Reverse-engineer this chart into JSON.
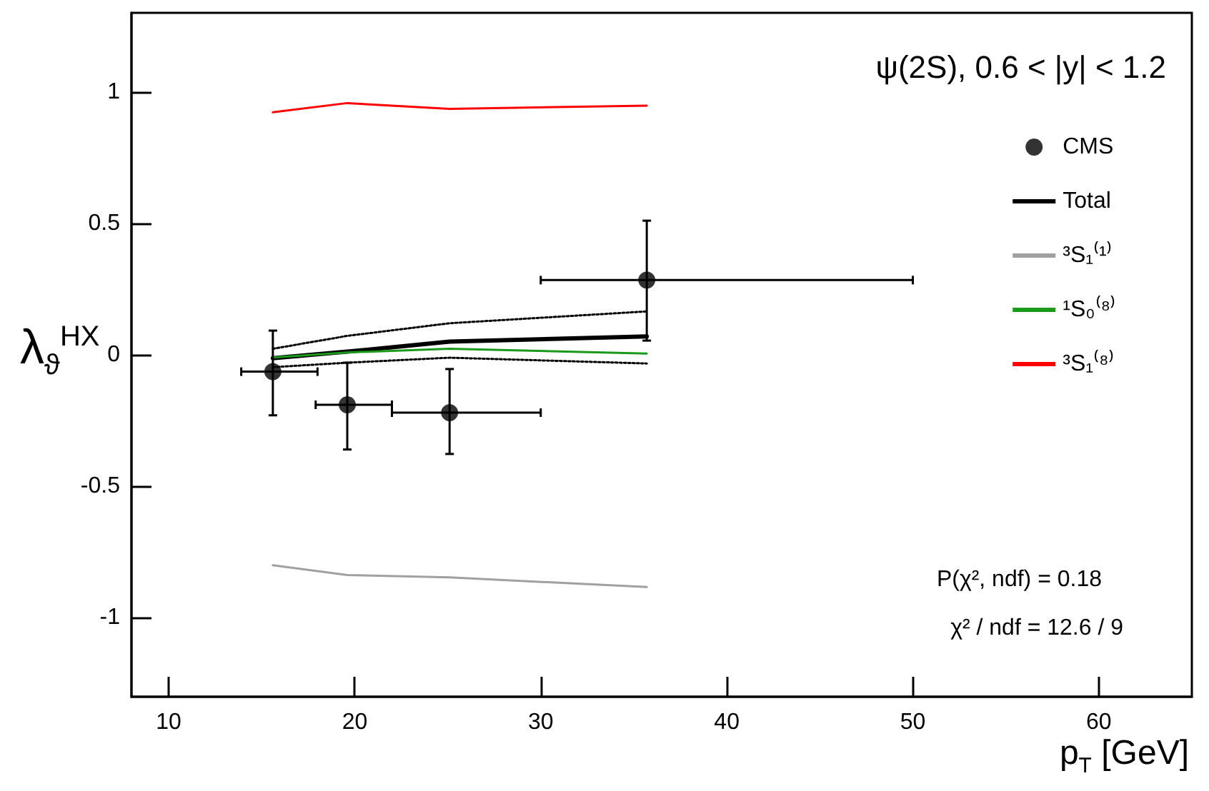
{
  "chart_data": {
    "type": "line",
    "xlabel": "p$_{T}$ [GeV]",
    "ylabel": "λ$_{ϑ}$$^{HX}$",
    "xlim": [
      8,
      65
    ],
    "xticks": [
      10,
      20,
      30,
      40,
      50,
      60
    ],
    "ylim": [
      -1.3,
      1.3
    ],
    "yticks": [
      -1,
      -0.5,
      0,
      0.5,
      1
    ],
    "grid": false,
    "legend": "top right",
    "line_style": "solid",
    "annotations": [
      "ψ(2S), 0.6 < |y| < 1.2",
      "P(χ², ndf) = 0.18",
      "χ² / ndf = 12.6 / 9"
    ],
    "series": [
      {
        "name": "CMS",
        "type": "scatter",
        "color": "#000000",
        "marker": "circle",
        "x": [
          15.6,
          19.6,
          25.1,
          35.7
        ],
        "values": [
          -0.064,
          -0.19,
          -0.22,
          0.284
        ],
        "errors": [
          [
            -0.23,
            0.092
          ],
          [
            -0.36,
            -0.03
          ],
          [
            -0.377,
            -0.054
          ],
          [
            0.054,
            0.51
          ]
        ],
        "xerrors": [
          [
            13.9,
            18.0
          ],
          [
            17.9,
            22.0
          ],
          [
            22.0,
            30.0
          ],
          [
            30.0,
            50.0
          ]
        ]
      },
      {
        "name": "Total",
        "color": "#000000",
        "x": [
          15.6,
          19.6,
          25.1,
          35.7
        ],
        "values": [
          -0.013,
          0.012,
          0.05,
          0.07
        ]
      },
      {
        "color": "#000000",
        "line_style": "dotted",
        "x": [
          15.6,
          19.6,
          25.1,
          35.7
        ],
        "values": [
          0.023,
          0.072,
          0.12,
          0.165
        ]
      },
      {
        "color": "#000000",
        "line_style": "dotted",
        "x": [
          15.6,
          19.6,
          25.1,
          35.7
        ],
        "values": [
          -0.047,
          -0.03,
          -0.011,
          -0.033
        ]
      },
      {
        "name": "³S₁⁽¹⁾",
        "color": "#a0a0a0",
        "x": [
          15.6,
          19.6,
          25.1,
          35.7
        ],
        "values": [
          -0.8,
          -0.837,
          -0.846,
          -0.883
        ]
      },
      {
        "name": "¹S₀⁽⁸⁾",
        "color": "#1a9a1a",
        "x": [
          15.6,
          19.6,
          25.1,
          35.7
        ],
        "values": [
          -0.01,
          0.009,
          0.023,
          0.005
        ]
      },
      {
        "name": "³S₁⁽⁸⁾",
        "color": "#ff0000",
        "x": [
          15.6,
          19.6,
          25.1,
          35.7
        ],
        "values": [
          0.922,
          0.957,
          0.935,
          0.947
        ]
      }
    ]
  }
}
